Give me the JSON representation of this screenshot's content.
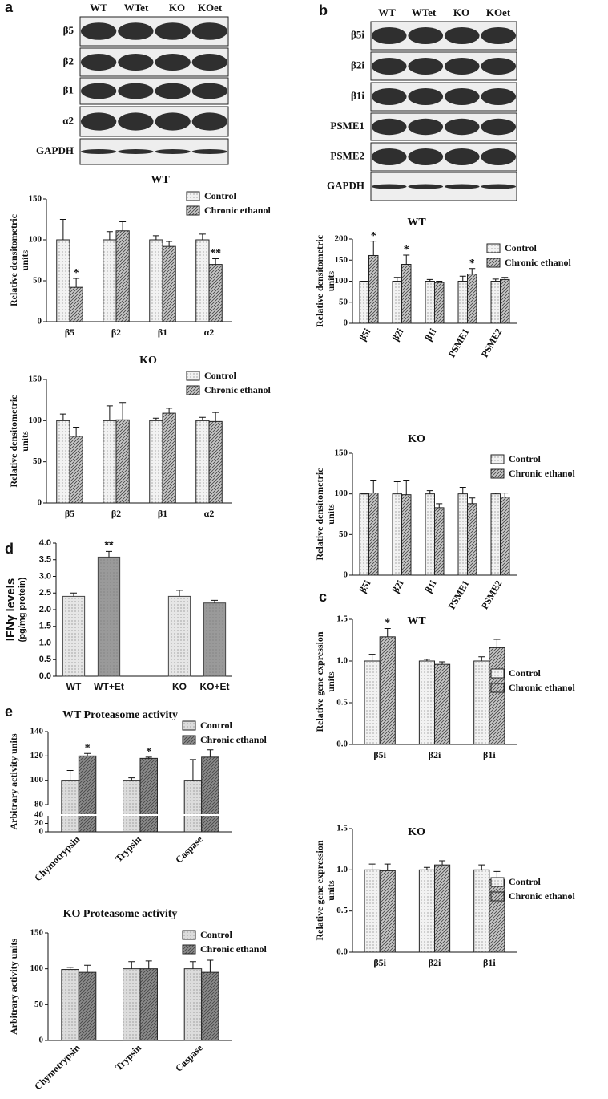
{
  "panels": [
    "a",
    "b",
    "c",
    "d",
    "e"
  ],
  "blot_a": {
    "lanes": [
      "WT",
      "WTet",
      "KO",
      "KOet"
    ],
    "rows": [
      "β5",
      "β2",
      "β1",
      "α2",
      "GAPDH"
    ]
  },
  "blot_b": {
    "lanes": [
      "WT",
      "WTet",
      "KO",
      "KOet"
    ],
    "rows": [
      "β5i",
      "β2i",
      "β1i",
      "PSME1",
      "PSME2",
      "GAPDH"
    ]
  },
  "chart_data": [
    {
      "type": "bar",
      "title": "WT",
      "ylabel": [
        "Relative densitometric",
        "units"
      ],
      "categories": [
        "β5",
        "β2",
        "β1",
        "α2"
      ],
      "series": [
        {
          "name": "Control",
          "color": "#f2f2f2",
          "values": [
            100,
            100,
            100,
            100
          ],
          "errors": [
            25,
            10,
            5,
            7
          ]
        },
        {
          "name": "Chronic ethanol",
          "color": "#c8c8c8",
          "values": [
            42,
            111,
            92,
            70
          ],
          "errors": [
            11,
            11,
            6,
            7
          ],
          "significance": [
            "*",
            null,
            null,
            "**"
          ]
        }
      ],
      "ylim": [
        0,
        150
      ],
      "yticks": [
        0,
        50,
        100,
        150
      ]
    },
    {
      "type": "bar",
      "title": "KO",
      "ylabel": [
        "Relative densitometric",
        "units"
      ],
      "categories": [
        "β5",
        "β2",
        "β1",
        "α2"
      ],
      "series": [
        {
          "name": "Control",
          "color": "#f2f2f2",
          "values": [
            100,
            100,
            100,
            100
          ],
          "errors": [
            8,
            18,
            3,
            4
          ]
        },
        {
          "name": "Chronic ethanol",
          "color": "#c8c8c8",
          "values": [
            81,
            101,
            109,
            99
          ],
          "errors": [
            11,
            21,
            6,
            11
          ]
        }
      ],
      "ylim": [
        0,
        150
      ],
      "yticks": [
        0,
        50,
        100,
        150
      ]
    },
    {
      "type": "bar",
      "title": "WT",
      "ylabel": [
        "Relative densitometric",
        "units"
      ],
      "categories": [
        "β5i",
        "β2i",
        "β1i",
        "PSME1",
        "PSME2"
      ],
      "series": [
        {
          "name": "Control",
          "color": "#f2f2f2",
          "values": [
            100,
            100,
            100,
            100,
            100
          ],
          "errors": [
            0,
            9,
            4,
            12,
            5
          ]
        },
        {
          "name": "Chronic ethanol",
          "color": "#c8c8c8",
          "values": [
            161,
            140,
            97,
            117,
            104
          ],
          "errors": [
            34,
            22,
            3,
            13,
            5
          ],
          "significance": [
            "*",
            "*",
            null,
            "*",
            null
          ]
        }
      ],
      "ylim": [
        0,
        200
      ],
      "yticks": [
        0,
        50,
        100,
        150,
        200
      ],
      "xtick_rotation": 60
    },
    {
      "type": "bar",
      "title": "KO",
      "ylabel": [
        "Relative densitometric",
        "units"
      ],
      "categories": [
        "β5i",
        "β2i",
        "β1i",
        "PSME1",
        "PSME2"
      ],
      "series": [
        {
          "name": "Control",
          "color": "#f2f2f2",
          "values": [
            100,
            100,
            100,
            100,
            100
          ],
          "errors": [
            0,
            15,
            4,
            8,
            1
          ]
        },
        {
          "name": "Chronic ethanol",
          "color": "#c8c8c8",
          "values": [
            101,
            99,
            83,
            88,
            96
          ],
          "errors": [
            16,
            18,
            5,
            7,
            5
          ]
        }
      ],
      "ylim": [
        0,
        150
      ],
      "yticks": [
        0,
        50,
        100,
        150
      ],
      "xtick_rotation": 60
    },
    {
      "type": "bar",
      "title": "WT",
      "ylabel": [
        "Relative gene expression",
        "units"
      ],
      "categories": [
        "β5i",
        "β2i",
        "β1i"
      ],
      "series": [
        {
          "name": "Control",
          "color": "#f2f2f2",
          "values": [
            1.0,
            1.0,
            1.0
          ],
          "errors": [
            0.08,
            0.02,
            0.05
          ]
        },
        {
          "name": "Chronic ethanol",
          "color": "#c8c8c8",
          "values": [
            1.29,
            0.96,
            1.16
          ],
          "errors": [
            0.1,
            0.03,
            0.1
          ],
          "significance": [
            "*",
            null,
            null
          ]
        }
      ],
      "ylim": [
        0,
        1.5
      ],
      "yticks": [
        {
          "value": 0,
          "label": "0.0"
        },
        0.5,
        {
          "value": 1,
          "label": "1.0"
        },
        1.5
      ]
    },
    {
      "type": "bar",
      "title": "KO",
      "ylabel": [
        "Relative gene expression",
        "units"
      ],
      "categories": [
        "β5i",
        "β2i",
        "β1i"
      ],
      "series": [
        {
          "name": "Control",
          "color": "#f2f2f2",
          "values": [
            1.0,
            1.0,
            1.0
          ],
          "errors": [
            0.07,
            0.03,
            0.06
          ]
        },
        {
          "name": "Chronic ethanol",
          "color": "#c8c8c8",
          "values": [
            0.99,
            1.06,
            0.88
          ],
          "errors": [
            0.08,
            0.05,
            0.1
          ]
        }
      ],
      "ylim": [
        0,
        1.5
      ],
      "yticks": [
        {
          "value": 0,
          "label": "0.0"
        },
        0.5,
        {
          "value": 1,
          "label": "1.0"
        },
        1.5
      ]
    },
    {
      "type": "bar",
      "ylabel": [
        "IFNγ levels",
        "(pg/mg protein)"
      ],
      "categories": [
        "WT",
        "WT+Et",
        null,
        "KO",
        "KO+Et"
      ],
      "values": [
        2.4,
        3.58,
        null,
        2.4,
        2.2
      ],
      "errors": [
        0.1,
        0.17,
        null,
        0.18,
        0.08
      ],
      "significance": [
        null,
        "**",
        null,
        null,
        null
      ],
      "colors": [
        "#e6e6e6",
        "#9a9a9a",
        null,
        "#e6e6e6",
        "#9a9a9a"
      ],
      "ylim": [
        0,
        4
      ],
      "yticks": [
        {
          "value": 0,
          "label": "0.0"
        },
        0.5,
        {
          "value": 1,
          "label": "1.0"
        },
        1.5,
        {
          "value": 2,
          "label": "2.0"
        },
        2.5,
        {
          "value": 3,
          "label": "3.0"
        },
        3.5,
        {
          "value": 4,
          "label": "4.0"
        }
      ]
    },
    {
      "type": "bar",
      "title": "WT Proteasome activity",
      "ylabel": [
        "Arbitrary activity units"
      ],
      "categories": [
        "Chymotrypsin",
        "Trypsin",
        "Caspase"
      ],
      "series": [
        {
          "name": "Control",
          "color": "#dcdcdc",
          "values": [
            100,
            100,
            100
          ],
          "errors": [
            8,
            2,
            17
          ]
        },
        {
          "name": "Chronic ethanol",
          "color": "#8c8c8c",
          "values": [
            120,
            118,
            119
          ],
          "errors": [
            2,
            1,
            6
          ],
          "significance": [
            "*",
            "*",
            null
          ]
        }
      ],
      "ylim": [
        80,
        140
      ],
      "yticks": [
        80,
        100,
        120,
        140
      ],
      "ylim_lower": [
        0,
        40
      ],
      "yticks_lower": [
        0,
        20,
        40
      ],
      "xtick_rotation": 45
    },
    {
      "type": "bar",
      "title": "KO Proteasome activity",
      "ylabel": [
        "Arbitrary activity units"
      ],
      "categories": [
        "Chymotrypsin",
        "Trypsin",
        "Caspase"
      ],
      "series": [
        {
          "name": "Control",
          "color": "#dcdcdc",
          "values": [
            99,
            100,
            100
          ],
          "errors": [
            3,
            10,
            10
          ]
        },
        {
          "name": "Chronic ethanol",
          "color": "#8c8c8c",
          "values": [
            95,
            100,
            95
          ],
          "errors": [
            10,
            11,
            17
          ]
        }
      ],
      "ylim": [
        0,
        150
      ],
      "yticks": [
        0,
        50,
        100,
        150
      ],
      "xtick_rotation": 45
    }
  ]
}
